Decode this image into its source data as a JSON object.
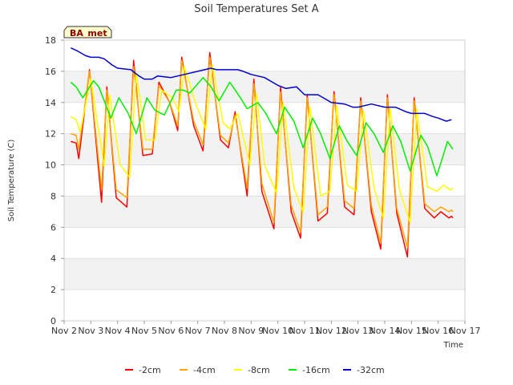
{
  "chart_data": {
    "type": "line",
    "title": "Soil Temperatures Set A",
    "xlabel": "Time",
    "ylabel": "Soil Temperature (C)",
    "badge": "BA_met",
    "xlim": [
      2,
      17
    ],
    "ylim": [
      0,
      18
    ],
    "x_ticks": [
      {
        "value": 2,
        "label": "Nov 2"
      },
      {
        "value": 3,
        "label": "Nov 3"
      },
      {
        "value": 4,
        "label": "Nov 4"
      },
      {
        "value": 5,
        "label": "Nov 5"
      },
      {
        "value": 6,
        "label": "Nov 6"
      },
      {
        "value": 7,
        "label": "Nov 7"
      },
      {
        "value": 8,
        "label": "Nov 8"
      },
      {
        "value": 9,
        "label": "Nov 9"
      },
      {
        "value": 10,
        "label": "Nov 10"
      },
      {
        "value": 11,
        "label": "Nov 11"
      },
      {
        "value": 12,
        "label": "Nov 12"
      },
      {
        "value": 13,
        "label": "Nov 13"
      },
      {
        "value": 14,
        "label": "Nov 14"
      },
      {
        "value": 15,
        "label": "Nov 15"
      },
      {
        "value": 16,
        "label": "Nov 16"
      },
      {
        "value": 17,
        "label": "Nov 17"
      }
    ],
    "y_ticks": [
      0,
      2,
      4,
      6,
      8,
      10,
      12,
      14,
      16,
      18
    ],
    "grid": "horizontal bands",
    "legend_position": "bottom",
    "series": [
      {
        "name": "-2cm",
        "color": "#ff0000",
        "x": [
          2.25,
          2.45,
          2.55,
          2.95,
          3.4,
          3.6,
          3.95,
          4.35,
          4.6,
          4.95,
          5.3,
          5.55,
          5.95,
          6.25,
          6.4,
          6.85,
          7.2,
          7.45,
          7.85,
          8.15,
          8.4,
          8.85,
          9.1,
          9.4,
          9.85,
          10.1,
          10.5,
          10.85,
          11.1,
          11.5,
          11.85,
          12.1,
          12.5,
          12.85,
          13.1,
          13.5,
          13.85,
          14.1,
          14.45,
          14.85,
          15.1,
          15.5,
          15.85,
          16.1,
          16.4,
          16.5,
          16.55
        ],
        "y": [
          11.5,
          11.4,
          10.4,
          16.1,
          7.6,
          15.0,
          7.9,
          7.3,
          16.7,
          10.6,
          10.7,
          15.3,
          14.0,
          12.2,
          16.9,
          12.5,
          10.9,
          17.2,
          11.6,
          11.1,
          13.4,
          8.0,
          15.5,
          8.3,
          5.9,
          15.0,
          7.0,
          5.3,
          14.5,
          6.4,
          6.9,
          14.7,
          7.3,
          6.8,
          14.3,
          7.0,
          4.6,
          14.5,
          6.9,
          4.1,
          14.3,
          7.2,
          6.6,
          7.0,
          6.6,
          6.7,
          6.6
        ]
      },
      {
        "name": "-4cm",
        "color": "#ffa500",
        "x": [
          2.25,
          2.45,
          2.55,
          2.95,
          3.4,
          3.6,
          3.95,
          4.35,
          4.6,
          4.95,
          5.3,
          5.55,
          5.95,
          6.25,
          6.4,
          6.85,
          7.2,
          7.45,
          7.85,
          8.15,
          8.4,
          8.85,
          9.1,
          9.4,
          9.85,
          10.1,
          10.5,
          10.85,
          11.1,
          11.5,
          11.85,
          12.1,
          12.5,
          12.85,
          13.1,
          13.5,
          13.85,
          14.1,
          14.45,
          14.85,
          15.1,
          15.5,
          15.85,
          16.1,
          16.4,
          16.5,
          16.55
        ],
        "y": [
          12.0,
          11.9,
          11.0,
          16.0,
          8.4,
          14.8,
          8.4,
          7.9,
          16.3,
          11.0,
          11.0,
          15.1,
          14.0,
          12.5,
          16.7,
          12.8,
          11.3,
          16.9,
          11.9,
          11.4,
          13.2,
          8.5,
          15.2,
          8.8,
          6.3,
          14.7,
          7.4,
          5.7,
          14.3,
          6.8,
          7.3,
          14.5,
          7.7,
          7.2,
          14.1,
          7.4,
          5.0,
          14.3,
          7.2,
          4.7,
          14.1,
          7.5,
          7.0,
          7.3,
          7.0,
          7.1,
          7.0
        ]
      },
      {
        "name": "-8cm",
        "color": "#ffff00",
        "x": [
          2.25,
          2.45,
          2.6,
          3.0,
          3.5,
          3.7,
          4.1,
          4.45,
          4.7,
          5.05,
          5.4,
          5.65,
          6.05,
          6.3,
          6.5,
          6.95,
          7.3,
          7.55,
          7.95,
          8.2,
          8.5,
          8.95,
          9.2,
          9.5,
          9.95,
          10.2,
          10.6,
          10.95,
          11.2,
          11.6,
          11.95,
          12.2,
          12.6,
          12.95,
          13.2,
          13.6,
          13.95,
          14.2,
          14.55,
          14.95,
          15.2,
          15.6,
          15.95,
          16.2,
          16.45,
          16.55
        ],
        "y": [
          13.1,
          12.9,
          12.1,
          15.5,
          9.9,
          14.5,
          10.0,
          9.2,
          15.9,
          11.6,
          11.6,
          14.8,
          14.3,
          13.4,
          16.3,
          13.8,
          12.3,
          16.4,
          12.7,
          12.3,
          13.3,
          10.0,
          14.6,
          10.0,
          8.2,
          14.0,
          8.5,
          7.0,
          13.7,
          8.0,
          8.3,
          13.8,
          8.7,
          8.3,
          13.5,
          8.5,
          6.6,
          13.6,
          8.4,
          6.3,
          13.6,
          8.6,
          8.3,
          8.7,
          8.4,
          8.5
        ]
      },
      {
        "name": "-16cm",
        "color": "#00ee00",
        "x": [
          2.25,
          2.45,
          2.7,
          3.1,
          3.3,
          3.75,
          4.05,
          4.4,
          4.7,
          5.1,
          5.4,
          5.75,
          6.2,
          6.45,
          6.7,
          7.2,
          7.5,
          7.8,
          8.2,
          8.6,
          8.85,
          9.25,
          9.55,
          9.95,
          10.25,
          10.6,
          10.95,
          11.3,
          11.6,
          11.95,
          12.3,
          12.6,
          12.95,
          13.3,
          13.6,
          13.95,
          14.3,
          14.6,
          14.95,
          15.35,
          15.6,
          15.95,
          16.35,
          16.55
        ],
        "y": [
          15.3,
          15.0,
          14.3,
          15.4,
          15.0,
          13.0,
          14.3,
          13.3,
          12.0,
          14.3,
          13.5,
          13.2,
          14.8,
          14.8,
          14.6,
          15.6,
          15.0,
          14.1,
          15.3,
          14.3,
          13.6,
          14.0,
          13.3,
          12.0,
          13.7,
          12.8,
          11.1,
          13.0,
          12.0,
          10.4,
          12.5,
          11.5,
          10.6,
          12.7,
          12.0,
          10.8,
          12.5,
          11.5,
          9.6,
          11.9,
          11.2,
          9.3,
          11.5,
          11.0
        ]
      },
      {
        "name": "-32cm",
        "color": "#0000cc",
        "x": [
          2.25,
          2.5,
          2.8,
          3.0,
          3.3,
          3.5,
          3.8,
          4.0,
          4.5,
          4.8,
          5.0,
          5.3,
          5.5,
          6.0,
          6.5,
          7.0,
          7.5,
          7.7,
          8.0,
          8.5,
          8.7,
          9.0,
          9.5,
          9.8,
          10.0,
          10.3,
          10.7,
          11.0,
          11.5,
          11.8,
          12.0,
          12.5,
          12.8,
          13.0,
          13.5,
          14.0,
          14.4,
          14.8,
          15.0,
          15.5,
          15.8,
          16.0,
          16.3,
          16.5
        ],
        "y": [
          17.5,
          17.3,
          17.0,
          16.9,
          16.9,
          16.8,
          16.4,
          16.2,
          16.1,
          15.7,
          15.5,
          15.5,
          15.7,
          15.6,
          15.8,
          16.0,
          16.2,
          16.1,
          16.1,
          16.1,
          16.0,
          15.8,
          15.6,
          15.3,
          15.1,
          14.9,
          15.0,
          14.5,
          14.5,
          14.2,
          14.0,
          13.9,
          13.7,
          13.7,
          13.9,
          13.7,
          13.7,
          13.4,
          13.3,
          13.3,
          13.1,
          13.0,
          12.8,
          12.9
        ]
      }
    ]
  }
}
